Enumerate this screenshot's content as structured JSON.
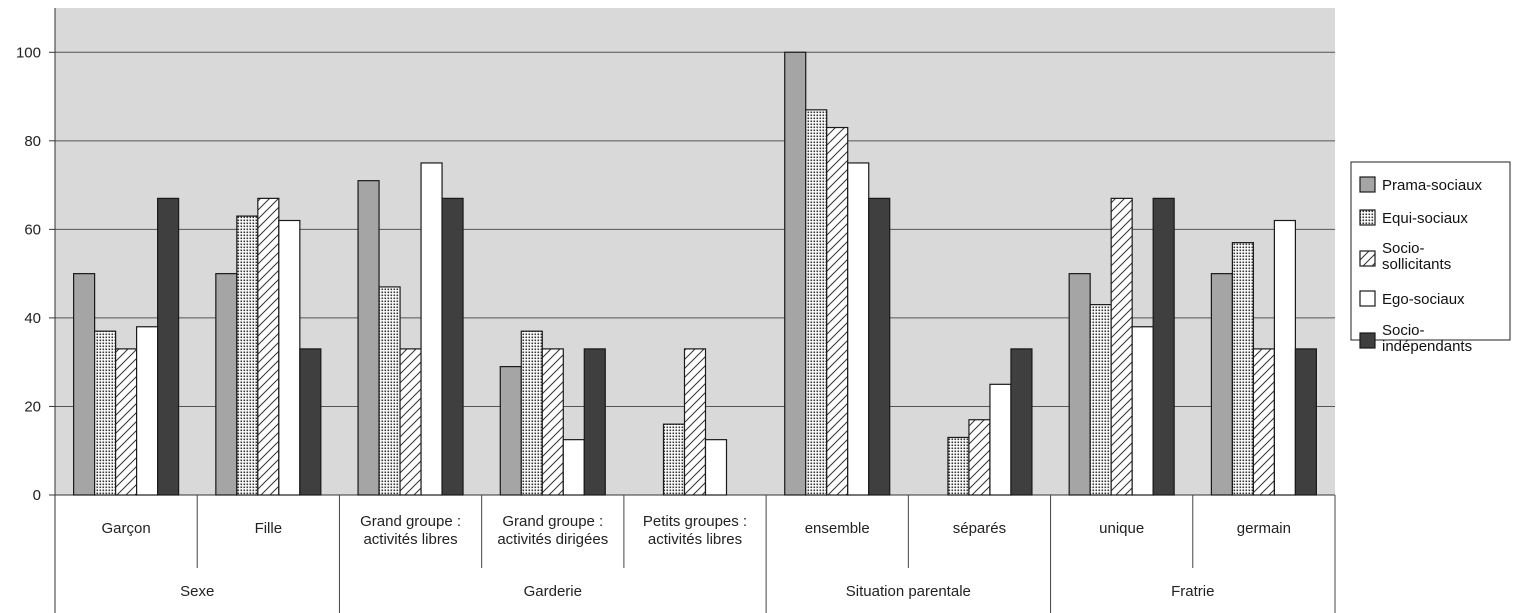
{
  "chart_data": {
    "type": "bar",
    "ylim": [
      0,
      110
    ],
    "yticks": [
      0,
      20,
      40,
      60,
      80,
      100
    ],
    "grid": true,
    "legend_position": "right",
    "groups": [
      {
        "label": "Sexe",
        "size": 2
      },
      {
        "label": "Garderie",
        "size": 3
      },
      {
        "label": "Situation parentale",
        "size": 2
      },
      {
        "label": "Fratrie",
        "size": 2
      }
    ],
    "categories": [
      [
        "Garçon"
      ],
      [
        "Fille"
      ],
      [
        "Grand groupe :",
        "activités libres"
      ],
      [
        "Grand groupe :",
        "activités dirigées"
      ],
      [
        "Petits groupes :",
        "activités libres"
      ],
      [
        "ensemble"
      ],
      [
        "séparés"
      ],
      [
        "unique"
      ],
      [
        "germain"
      ]
    ],
    "series": [
      {
        "name": [
          "Prama-sociaux"
        ],
        "pattern": "gray",
        "values": [
          50,
          50,
          71,
          29,
          0,
          100,
          0,
          50,
          50
        ]
      },
      {
        "name": [
          "Equi-sociaux"
        ],
        "pattern": "dots",
        "values": [
          37,
          63,
          47,
          37,
          16,
          87,
          13,
          43,
          57
        ]
      },
      {
        "name": [
          "Socio-",
          "sollicitants"
        ],
        "pattern": "hatch",
        "values": [
          33,
          67,
          33,
          33,
          33,
          83,
          17,
          67,
          33
        ]
      },
      {
        "name": [
          "Ego-sociaux"
        ],
        "pattern": "white",
        "values": [
          38,
          62,
          75,
          12.5,
          12.5,
          75,
          25,
          38,
          62
        ]
      },
      {
        "name": [
          "Socio-",
          "indépendants"
        ],
        "pattern": "dark",
        "values": [
          67,
          33,
          67,
          33,
          0,
          67,
          33,
          67,
          33
        ]
      }
    ]
  }
}
